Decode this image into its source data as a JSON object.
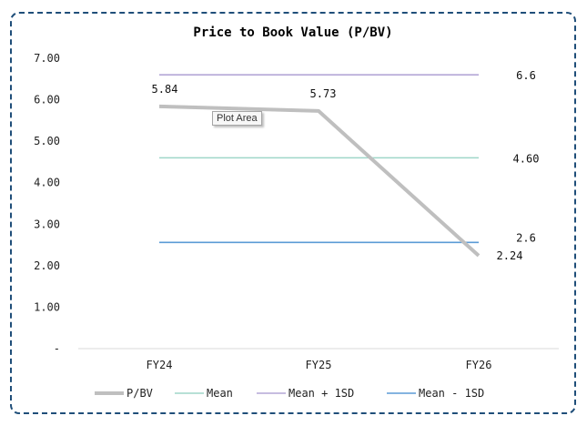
{
  "chart_data": {
    "type": "line",
    "title": "Price to Book Value (P/BV)",
    "categories": [
      "FY24",
      "FY25",
      "FY26"
    ],
    "ylim": [
      0,
      7
    ],
    "yticks": [
      {
        "value": 0,
        "label": "-"
      },
      {
        "value": 1,
        "label": "1.00"
      },
      {
        "value": 2,
        "label": "2.00"
      },
      {
        "value": 3,
        "label": "3.00"
      },
      {
        "value": 4,
        "label": "4.00"
      },
      {
        "value": 5,
        "label": "5.00"
      },
      {
        "value": 6,
        "label": "6.00"
      },
      {
        "value": 7,
        "label": "7.00"
      }
    ],
    "grid": false,
    "legend_position": "bottom",
    "series": [
      {
        "name": "P/BV",
        "values": [
          5.84,
          5.73,
          2.24
        ],
        "color": "#bfbfbf",
        "labels": [
          "5.84",
          "5.73",
          "2.24"
        ]
      },
      {
        "name": "Mean",
        "values": [
          4.6,
          4.6,
          4.6
        ],
        "color": "#9fd6c9",
        "end_label": "4.60"
      },
      {
        "name": "Mean + 1SD",
        "values": [
          6.6,
          6.6,
          6.6
        ],
        "color": "#b4a7d6",
        "end_label": "6.6"
      },
      {
        "name": "Mean - 1SD",
        "values": [
          2.56,
          2.56,
          2.56
        ],
        "color": "#5b9bd5",
        "end_label": "2.6"
      }
    ]
  },
  "tooltip": {
    "text": "Plot Area"
  }
}
